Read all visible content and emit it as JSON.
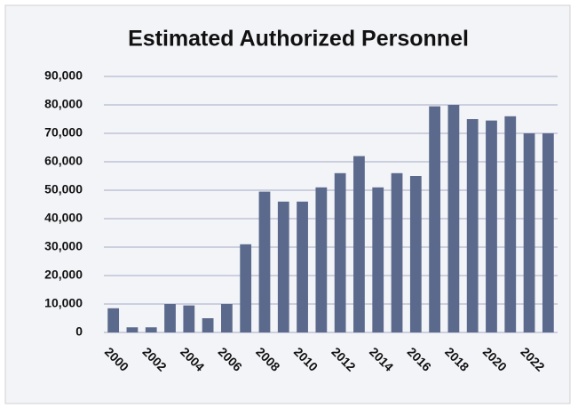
{
  "chart_data": {
    "type": "bar",
    "title": "Estimated Authorized Personnel",
    "categories": [
      "2000",
      null,
      "2002",
      null,
      "2004",
      null,
      "2006",
      null,
      "2008",
      null,
      "2010",
      null,
      "2012",
      null,
      "2014",
      null,
      "2016",
      null,
      "2018",
      null,
      "2020",
      null,
      "2022",
      null
    ],
    "values": [
      8500,
      1800,
      1800,
      10000,
      9500,
      5000,
      10000,
      31000,
      49500,
      46000,
      46000,
      51000,
      56000,
      62000,
      51000,
      56000,
      55000,
      79500,
      80000,
      75000,
      74500,
      76000,
      70000,
      70000
    ],
    "color": "#5b6a8c",
    "ylim": [
      0,
      90000
    ],
    "yticks": [
      0,
      {
        "value": 10000,
        "label": "10,000"
      },
      {
        "value": 20000,
        "label": "20,000"
      },
      {
        "value": 30000,
        "label": "30,000"
      },
      {
        "value": 40000,
        "label": "40,000"
      },
      {
        "value": 50000,
        "label": "50,000"
      },
      {
        "value": 60000,
        "label": "60,000"
      },
      {
        "value": 70000,
        "label": "70,000"
      },
      {
        "value": 80000,
        "label": "80,000"
      },
      {
        "value": 90000,
        "label": "90,000"
      }
    ],
    "grid": true
  }
}
